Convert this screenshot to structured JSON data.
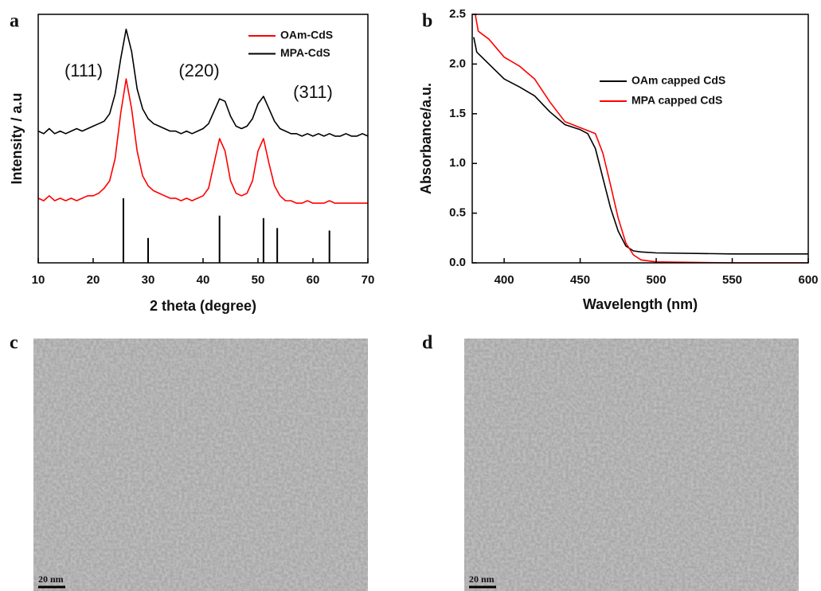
{
  "chart_data": [
    {
      "type": "line",
      "panel_label": "a",
      "x_label": "2 theta (degree)",
      "y_label": "Intensity / a.u",
      "xlim": [
        10,
        70
      ],
      "xticks": [
        10,
        20,
        30,
        40,
        50,
        60,
        70
      ],
      "ylim": [
        0,
        100
      ],
      "legend": "upper right",
      "annotations": [
        "(111)",
        "(220)",
        "(311)"
      ],
      "x": [
        10,
        11,
        12,
        13,
        14,
        15,
        16,
        17,
        18,
        19,
        20,
        21,
        22,
        23,
        24,
        25,
        26,
        27,
        28,
        29,
        30,
        31,
        32,
        33,
        34,
        35,
        36,
        37,
        38,
        39,
        40,
        41,
        42,
        43,
        44,
        45,
        46,
        47,
        48,
        49,
        50,
        51,
        52,
        53,
        54,
        55,
        56,
        57,
        58,
        59,
        60,
        61,
        62,
        63,
        64,
        65,
        66,
        67,
        68,
        69,
        70
      ],
      "series": [
        {
          "name": "OAm-CdS",
          "color": "#ff0000",
          "values": [
            26,
            25,
            27,
            25,
            26,
            25,
            26,
            25,
            26,
            27,
            27,
            28,
            30,
            33,
            42,
            60,
            74,
            62,
            45,
            35,
            31,
            29,
            28,
            27,
            26,
            26,
            25,
            26,
            25,
            26,
            27,
            30,
            40,
            50,
            45,
            33,
            28,
            27,
            28,
            33,
            45,
            50,
            40,
            31,
            27,
            25,
            25,
            24,
            24,
            25,
            24,
            24,
            24,
            25,
            24,
            24,
            24,
            24,
            24,
            24,
            24
          ]
        },
        {
          "name": "MPA-CdS",
          "color": "#000000",
          "values": [
            53,
            52,
            54,
            52,
            53,
            52,
            53,
            54,
            53,
            54,
            55,
            56,
            57,
            60,
            68,
            82,
            94,
            85,
            70,
            62,
            58,
            56,
            55,
            54,
            53,
            53,
            52,
            53,
            52,
            53,
            54,
            56,
            61,
            66,
            65,
            59,
            55,
            54,
            55,
            58,
            64,
            67,
            62,
            57,
            54,
            53,
            52,
            52,
            51,
            52,
            51,
            52,
            51,
            52,
            51,
            51,
            52,
            51,
            51,
            52,
            51
          ]
        }
      ],
      "reference_peaks": {
        "color": "#000000",
        "x": [
          25.5,
          30,
          43,
          51,
          53.5,
          63
        ],
        "values": [
          26,
          10,
          19,
          18,
          14,
          13
        ]
      }
    },
    {
      "type": "line",
      "panel_label": "b",
      "x_label": "Wavelength (nm)",
      "y_label": "Absorbance/a.u.",
      "xlim": [
        379,
        600
      ],
      "xticks": [
        400,
        450,
        500,
        550,
        600
      ],
      "ylim": [
        0,
        2.5
      ],
      "yticks": [
        {
          "value": 0,
          "label": "0.0"
        },
        0.5,
        {
          "value": 1,
          "label": "1.0"
        },
        1.5,
        {
          "value": 2,
          "label": "2.0"
        },
        2.5
      ],
      "legend": "upper right",
      "series": [
        {
          "name": "OAm capped CdS",
          "color": "#000000",
          "x": [
            380,
            382,
            390,
            400,
            410,
            420,
            430,
            440,
            450,
            455,
            460,
            465,
            470,
            475,
            480,
            485,
            490,
            500,
            550,
            600
          ],
          "values": [
            2.27,
            2.12,
            2.0,
            1.85,
            1.77,
            1.68,
            1.52,
            1.39,
            1.34,
            1.3,
            1.15,
            0.85,
            0.55,
            0.32,
            0.17,
            0.12,
            0.11,
            0.1,
            0.09,
            0.09
          ]
        },
        {
          "name": "MPA capped CdS",
          "color": "#ff0000",
          "x": [
            381,
            383,
            390,
            400,
            410,
            420,
            430,
            440,
            450,
            460,
            465,
            470,
            475,
            480,
            485,
            490,
            500,
            550,
            600
          ],
          "values": [
            2.5,
            2.33,
            2.25,
            2.07,
            1.98,
            1.85,
            1.62,
            1.42,
            1.36,
            1.3,
            1.1,
            0.78,
            0.45,
            0.2,
            0.08,
            0.03,
            0.01,
            0.0,
            0.0
          ]
        }
      ]
    }
  ],
  "images": [
    {
      "panel_label": "c",
      "scale_bar": "20 nm"
    },
    {
      "panel_label": "d",
      "scale_bar": "20 nm"
    }
  ]
}
